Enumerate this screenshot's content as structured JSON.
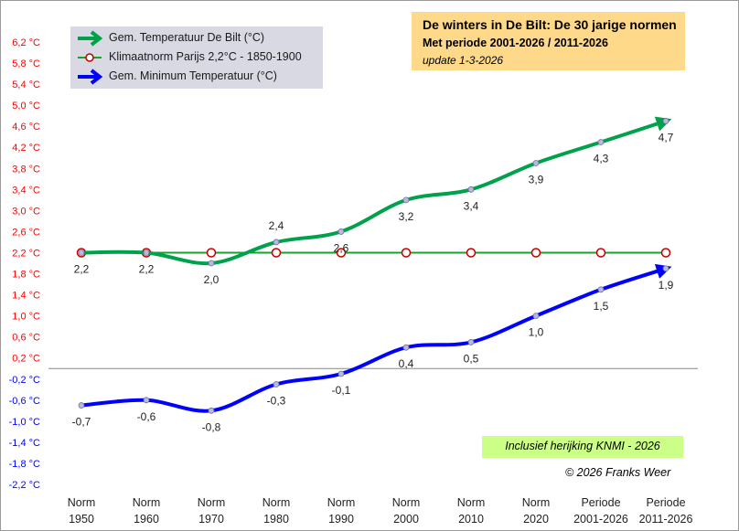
{
  "title": {
    "line1": "De winters in De Bilt:  De 30 jarige normen",
    "line2": "Met periode 2001-2026 / 2011-2026",
    "line3": "update  1-3-2026"
  },
  "note": "Inclusief herijking KNMI - 2026",
  "copyright": "© 2026 Franks Weer",
  "colors": {
    "green": "#00a14b",
    "paris": "#1aa12b",
    "blue": "#0000ff",
    "positive_tick": "#ff0000",
    "negative_tick": "#0000ff",
    "zero_line": "#888888"
  },
  "legend": [
    {
      "label": "Gem. Temperatuur De Bilt (°C)",
      "icon": "green-arrow-icon"
    },
    {
      "label": "Klimaatnorm Parijs  2,2°C  -  1850-1900",
      "icon": "green-line-circle-icon"
    },
    {
      "label": "Gem.  Minimum Temperatuur  (°C)",
      "icon": "blue-arrow-icon"
    }
  ],
  "chart_data": {
    "type": "line",
    "categories": [
      [
        "Norm",
        "1950"
      ],
      [
        "Norm",
        "1960"
      ],
      [
        "Norm",
        "1970"
      ],
      [
        "Norm",
        "1980"
      ],
      [
        "Norm",
        "1990"
      ],
      [
        "Norm",
        "2000"
      ],
      [
        "Norm",
        "2010"
      ],
      [
        "Norm",
        "2020"
      ],
      [
        "Periode",
        "2001-2026"
      ],
      [
        "Periode",
        "2011-2026"
      ]
    ],
    "ylim": [
      -2.2,
      6.2
    ],
    "ytick_step": 0.4,
    "yticks": [
      "6,2 °C",
      "5,8 °C",
      "5,4 °C",
      "5,0 °C",
      "4,6 °C",
      "4,2 °C",
      "3,8 °C",
      "3,4 °C",
      "3,0 °C",
      "2,6 °C",
      "2,2 °C",
      "1,8 °C",
      "1,4 °C",
      "1,0 °C",
      "0,6 °C",
      "0,2 °C",
      "-0,2 °C",
      "-0,6 °C",
      "-1,0 °C",
      "-1,4 °C",
      "-1,8 °C",
      "-2,2 °C"
    ],
    "series": [
      {
        "name": "Gem. Temperatuur De Bilt (°C)",
        "values": [
          2.2,
          2.2,
          2.0,
          2.4,
          2.6,
          3.2,
          3.4,
          3.9,
          4.3,
          4.7
        ],
        "labels": [
          "2,2",
          "2,2",
          "2,0",
          "2,4",
          "2,6",
          "3,2",
          "3,4",
          "3,9",
          "4,3",
          "4,7"
        ],
        "label_pos": [
          "below",
          "below",
          "below",
          "above",
          "below",
          "below",
          "below",
          "below",
          "below",
          "below"
        ]
      },
      {
        "name": "Klimaatnorm Parijs  2,2°C  -  1850-1900",
        "values": [
          2.2,
          2.2,
          2.2,
          2.2,
          2.2,
          2.2,
          2.2,
          2.2,
          2.2,
          2.2
        ],
        "labels": []
      },
      {
        "name": "Gem.  Minimum Temperatuur  (°C)",
        "values": [
          -0.7,
          -0.6,
          -0.8,
          -0.3,
          -0.1,
          0.4,
          0.5,
          1.0,
          1.5,
          1.9
        ],
        "labels": [
          "-0,7",
          "-0,6",
          "-0,8",
          "-0,3",
          "-0,1",
          "0,4",
          "0,5",
          "1,0",
          "1,5",
          "1,9"
        ],
        "label_pos": [
          "below",
          "below",
          "below",
          "below",
          "below",
          "below",
          "below",
          "below",
          "below",
          "below"
        ]
      }
    ]
  }
}
